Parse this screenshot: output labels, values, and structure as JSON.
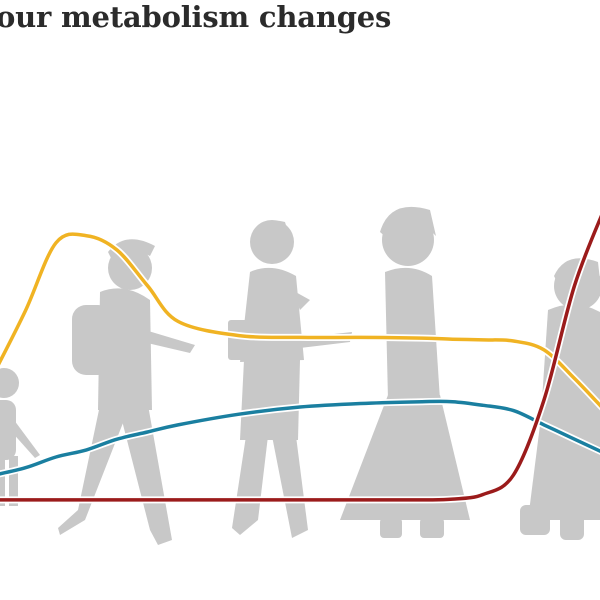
{
  "title": "our metabolism changes",
  "chart_data": {
    "type": "line",
    "title": "our metabolism changes",
    "xlabel": "",
    "ylabel": "",
    "ylim": [
      0,
      100
    ],
    "grid": false,
    "legend": "none",
    "x": [
      0,
      5,
      10,
      15,
      20,
      25,
      30,
      40,
      50,
      60,
      70,
      75,
      80,
      85,
      90,
      95,
      100
    ],
    "series": [
      {
        "color": "#f0b323",
        "values": [
          38,
          55,
          74,
          76,
          72,
          62,
          52,
          48,
          47.5,
          47.5,
          47.3,
          47,
          46.8,
          46.5,
          44,
          36,
          27
        ]
      },
      {
        "color": "#1a7fa0",
        "values": [
          9,
          11,
          14,
          16,
          19,
          21,
          23,
          26,
          28,
          29,
          29.5,
          29.5,
          28.5,
          27,
          23,
          19,
          15
        ]
      },
      {
        "color": "#9b1b1b",
        "values": [
          2,
          2,
          2,
          2,
          2,
          2,
          2,
          2,
          2,
          2,
          2,
          2.2,
          3.5,
          9,
          30,
          62,
          84
        ]
      }
    ]
  }
}
